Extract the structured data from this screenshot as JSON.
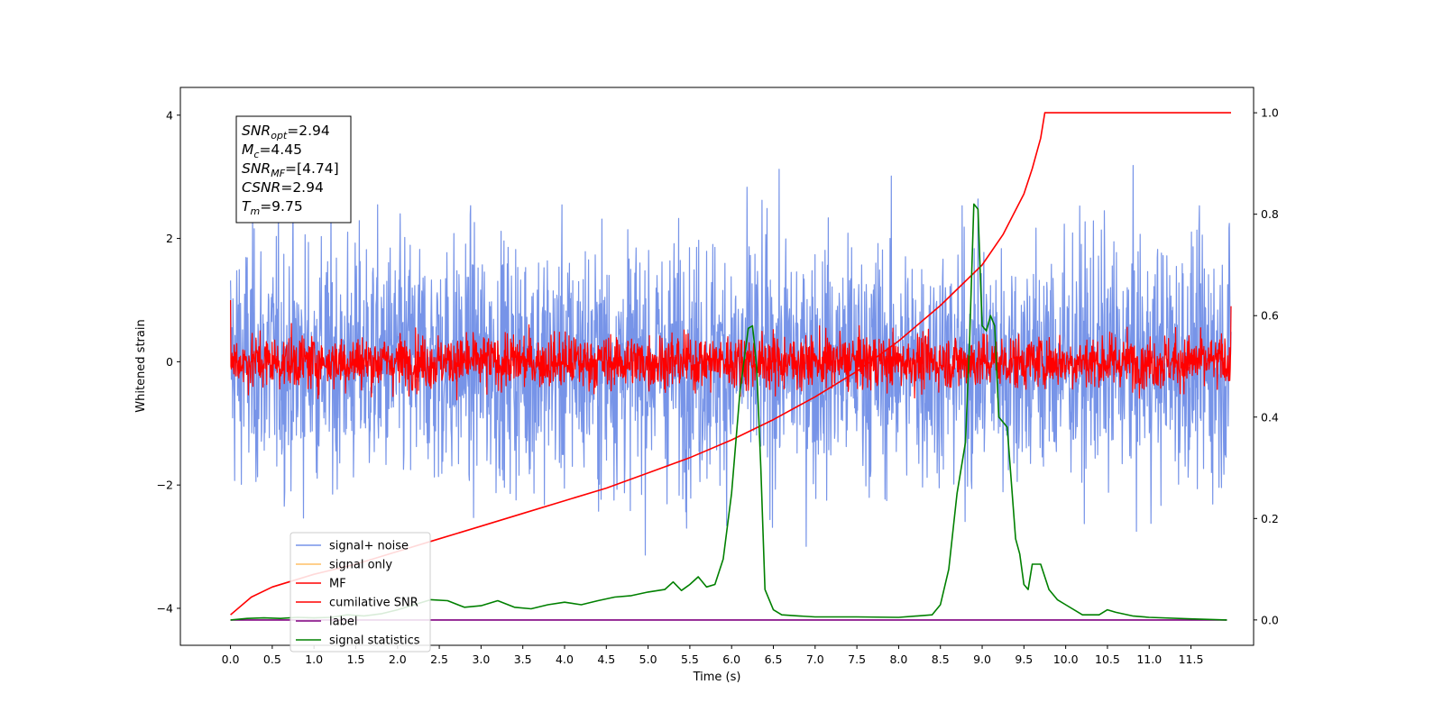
{
  "chart_data": {
    "type": "line",
    "title": "",
    "xlabel": "Time (s)",
    "ylabel_left": "Whitened strain",
    "ylabel_right": "",
    "xlim": [
      -0.6,
      12.25
    ],
    "ylim_left": [
      -4.6,
      4.45
    ],
    "ylim_right": [
      -0.05,
      1.05
    ],
    "x_ticks": [
      "0.0",
      "0.5",
      "1.0",
      "1.5",
      "2.0",
      "2.5",
      "3.0",
      "3.5",
      "4.0",
      "4.5",
      "5.0",
      "5.5",
      "6.0",
      "6.5",
      "7.0",
      "7.5",
      "8.0",
      "8.5",
      "9.0",
      "9.5",
      "10.0",
      "10.5",
      "11.0",
      "11.5"
    ],
    "y_left_ticks": [
      "4",
      "2",
      "0",
      "−2",
      "−4"
    ],
    "y_right_ticks": [
      "1.0",
      "0.8",
      "0.6",
      "0.4",
      "0.2",
      "0.0"
    ],
    "grid": false,
    "legend_position": "lower-left",
    "series": [
      {
        "name": "signal+ noise",
        "color": "#7794e8",
        "axis": "left",
        "pattern": "noise",
        "x_range": [
          0,
          11.98
        ],
        "std": 1.0
      },
      {
        "name": "signal only",
        "color": "#ffbf66",
        "axis": "left",
        "pattern": "none"
      },
      {
        "name": "MF",
        "color": "#ff0000",
        "axis": "left",
        "pattern": "noise",
        "x_range": [
          0,
          11.98
        ],
        "std": 0.22
      },
      {
        "name": "cumilative SNR",
        "color": "#ff0000",
        "axis": "right",
        "x": [
          0.0,
          0.25,
          0.5,
          1.0,
          1.5,
          2.0,
          2.5,
          3.0,
          3.5,
          4.0,
          4.5,
          5.0,
          5.5,
          6.0,
          6.5,
          7.0,
          7.5,
          8.0,
          8.5,
          9.0,
          9.25,
          9.5,
          9.6,
          9.7,
          9.75,
          10.5,
          11.0,
          11.5,
          11.98
        ],
        "y": [
          0.01,
          0.045,
          0.065,
          0.09,
          0.11,
          0.135,
          0.16,
          0.185,
          0.21,
          0.235,
          0.26,
          0.29,
          0.32,
          0.355,
          0.395,
          0.44,
          0.49,
          0.55,
          0.62,
          0.7,
          0.76,
          0.84,
          0.89,
          0.95,
          1.0,
          1.0,
          1.0,
          1.0,
          1.0
        ]
      },
      {
        "name": "label",
        "color": "#800080",
        "axis": "right",
        "x": [
          0.0,
          11.93
        ],
        "y": [
          0.0,
          0.0
        ]
      },
      {
        "name": "signal statistics",
        "color": "#008000",
        "axis": "right",
        "x": [
          0.0,
          0.2,
          0.4,
          0.6,
          0.8,
          1.0,
          1.2,
          1.4,
          1.6,
          1.8,
          2.0,
          2.2,
          2.4,
          2.6,
          2.8,
          3.0,
          3.2,
          3.4,
          3.6,
          3.8,
          4.0,
          4.2,
          4.4,
          4.6,
          4.8,
          5.0,
          5.2,
          5.3,
          5.4,
          5.5,
          5.6,
          5.7,
          5.8,
          5.9,
          6.0,
          6.1,
          6.2,
          6.25,
          6.3,
          6.35,
          6.4,
          6.5,
          6.6,
          6.8,
          7.0,
          7.5,
          8.0,
          8.4,
          8.5,
          8.6,
          8.7,
          8.8,
          8.85,
          8.9,
          8.95,
          9.0,
          9.05,
          9.1,
          9.15,
          9.2,
          9.3,
          9.4,
          9.45,
          9.5,
          9.55,
          9.6,
          9.7,
          9.8,
          9.9,
          10.0,
          10.2,
          10.4,
          10.5,
          10.6,
          10.8,
          11.0,
          11.5,
          11.93
        ],
        "y": [
          0.0,
          0.003,
          0.004,
          0.003,
          0.005,
          0.004,
          0.005,
          0.01,
          0.008,
          0.012,
          0.02,
          0.03,
          0.04,
          0.038,
          0.025,
          0.028,
          0.038,
          0.025,
          0.022,
          0.03,
          0.035,
          0.03,
          0.038,
          0.045,
          0.048,
          0.055,
          0.06,
          0.075,
          0.058,
          0.07,
          0.085,
          0.065,
          0.07,
          0.12,
          0.25,
          0.45,
          0.575,
          0.58,
          0.5,
          0.3,
          0.06,
          0.02,
          0.01,
          0.008,
          0.006,
          0.006,
          0.005,
          0.01,
          0.03,
          0.1,
          0.25,
          0.35,
          0.55,
          0.82,
          0.81,
          0.58,
          0.57,
          0.6,
          0.58,
          0.4,
          0.38,
          0.16,
          0.13,
          0.07,
          0.06,
          0.11,
          0.11,
          0.06,
          0.04,
          0.03,
          0.01,
          0.01,
          0.02,
          0.015,
          0.008,
          0.005,
          0.002,
          0.0
        ]
      }
    ],
    "annotation_box": {
      "lines": [
        {
          "base": "SNR",
          "sub": "opt",
          "value": "=2.94"
        },
        {
          "base": "M",
          "sub": "c",
          "value": "=4.45"
        },
        {
          "base": "SNR",
          "sub": "MF",
          "value": "=[4.74]"
        },
        {
          "base": "CSNR",
          "sub": "",
          "value": "=2.94"
        },
        {
          "base": "T",
          "sub": "m",
          "value": "=9.75"
        }
      ]
    }
  }
}
